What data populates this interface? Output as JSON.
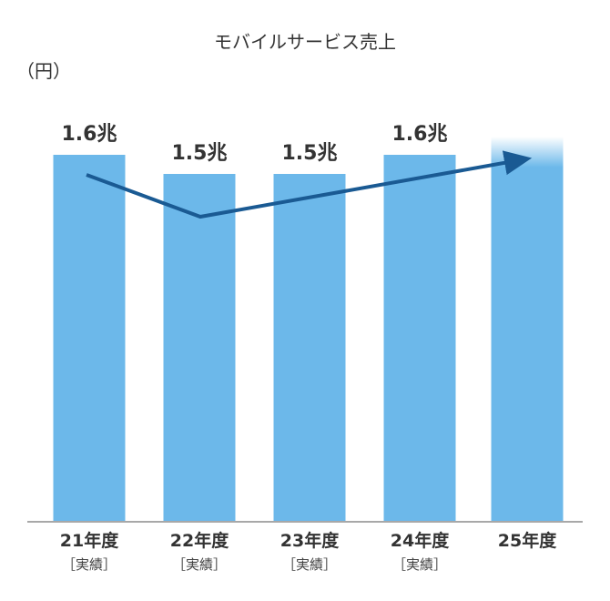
{
  "title": "モバイルサービス売上",
  "unit_label": "（円）",
  "chart_data": {
    "type": "bar",
    "categories": [
      "21年度",
      "22年度",
      "23年度",
      "24年度",
      "25年度"
    ],
    "sublabels": [
      "［実績］",
      "［実績］",
      "［実績］",
      "［実績］",
      ""
    ],
    "values": [
      1.6,
      1.5,
      1.5,
      1.6,
      null
    ],
    "value_labels": [
      "1.6兆",
      "1.5兆",
      "1.5兆",
      "1.6兆",
      ""
    ],
    "bar_color": "#6cb8ea",
    "trend_color": "#1a5a93",
    "trend_direction": "upward arrow toward 25年度 (forecast, no value shown)"
  }
}
